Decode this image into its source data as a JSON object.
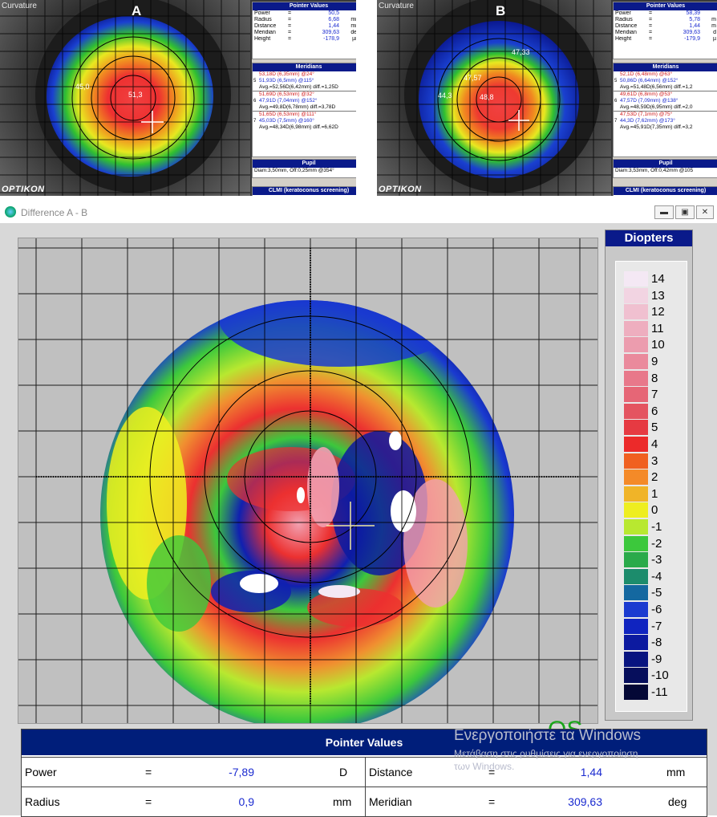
{
  "top_panels": [
    {
      "title": "Curvature",
      "letter": "A",
      "brand": "OPTIKON",
      "annotations": [
        "45,0",
        "51,3"
      ],
      "pointer_values": {
        "header": "Pointer Values",
        "rows": [
          {
            "label": "Power",
            "eq": "=",
            "value": "50,5",
            "unit": "D"
          },
          {
            "label": "Radius",
            "eq": "=",
            "value": "6,68",
            "unit": "mm"
          },
          {
            "label": "Distance",
            "eq": "=",
            "value": "1,44",
            "unit": "mm"
          },
          {
            "label": "Meridian",
            "eq": "=",
            "value": "309,63",
            "unit": "deg"
          },
          {
            "label": "Height",
            "eq": "=",
            "value": "-178,9",
            "unit": "µm"
          }
        ]
      },
      "meridians": {
        "header": "Meridians",
        "groups": [
          {
            "num": "5",
            "lines": [
              "53,18D (6,35mm) @24°",
              "51,93D (6,5mm) @115°",
              "Avg.=52,56D(6,42mm) diff.=1,25D"
            ]
          },
          {
            "num": "6",
            "lines": [
              "51,69D (6,53mm) @32°",
              "47,91D (7,04mm) @152°",
              "Avg.=49,8D(6,78mm) diff.=3,78D"
            ]
          },
          {
            "num": "7",
            "lines": [
              "51,65D (6,53mm) @111°",
              "45,03D (7,5mm) @160°",
              "Avg.=48,34D(6,98mm) diff.=6,62D"
            ]
          }
        ]
      },
      "pupil": {
        "header": "Pupil",
        "text": "Diam:3,50mm, Off:0,25mm @354°"
      },
      "clmi": "CLMI (keratoconus screening)"
    },
    {
      "title": "Curvature",
      "letter": "B",
      "brand": "OPTIKON",
      "annotations": [
        "47,33",
        "44,3",
        "47,57",
        "48,8"
      ],
      "pointer_values": {
        "header": "Pointer Values",
        "rows": [
          {
            "label": "Power",
            "eq": "=",
            "value": "58,39",
            "unit": ""
          },
          {
            "label": "Radius",
            "eq": "=",
            "value": "5,78",
            "unit": "m"
          },
          {
            "label": "Distance",
            "eq": "=",
            "value": "1,44",
            "unit": "m"
          },
          {
            "label": "Meridian",
            "eq": "=",
            "value": "309,63",
            "unit": "d"
          },
          {
            "label": "Height",
            "eq": "=",
            "value": "-179,9",
            "unit": "µ"
          }
        ]
      },
      "meridians": {
        "header": "Meridians",
        "groups": [
          {
            "num": "5",
            "lines": [
              "52,1D (6,48mm) @63°",
              "50,86D (6,64mm) @152°",
              "Avg.=51,48D(6,56mm) diff.=1,2"
            ]
          },
          {
            "num": "6",
            "lines": [
              "49,61D (6,8mm) @53°",
              "47,57D (7,09mm) @138°",
              "Avg.=48,59D(6,95mm) diff.=2,0"
            ]
          },
          {
            "num": "7",
            "lines": [
              "47,53D (7,1mm) @75°",
              "44,3D (7,62mm) @173°",
              "Avg.=45,91D(7,35mm) diff.=3,2"
            ]
          }
        ]
      },
      "pupil": {
        "header": "Pupil",
        "text": "Diam:3,53mm, Off:0,42mm @105"
      },
      "clmi": "CLMI (keratoconus screening)"
    }
  ],
  "window": {
    "title": "Difference A - B",
    "controls": [
      "minimize",
      "maximize",
      "close"
    ],
    "eye_label": "OS",
    "legend": {
      "title": "Diopters",
      "scale": [
        {
          "value": "14",
          "color": "#f4e8f4"
        },
        {
          "value": "13",
          "color": "#f2d4e2"
        },
        {
          "value": "12",
          "color": "#f0c0d0"
        },
        {
          "value": "11",
          "color": "#eeaebf"
        },
        {
          "value": "10",
          "color": "#ec9cae"
        },
        {
          "value": "9",
          "color": "#ea8a9c"
        },
        {
          "value": "8",
          "color": "#e8788a"
        },
        {
          "value": "7",
          "color": "#e66676"
        },
        {
          "value": "6",
          "color": "#e45460"
        },
        {
          "value": "5",
          "color": "#e63a42"
        },
        {
          "value": "4",
          "color": "#ec2a2a"
        },
        {
          "value": "3",
          "color": "#f06020"
        },
        {
          "value": "2",
          "color": "#f48a28"
        },
        {
          "value": "1",
          "color": "#f0b428"
        },
        {
          "value": "0",
          "color": "#eeee20"
        },
        {
          "value": "-1",
          "color": "#b8e830"
        },
        {
          "value": "-2",
          "color": "#3cc83c"
        },
        {
          "value": "-3",
          "color": "#2aaa4a"
        },
        {
          "value": "-4",
          "color": "#1c8c6c"
        },
        {
          "value": "-5",
          "color": "#1468a0"
        },
        {
          "value": "-6",
          "color": "#1a3ad0"
        },
        {
          "value": "-7",
          "color": "#1024c0"
        },
        {
          "value": "-8",
          "color": "#0c1aa0"
        },
        {
          "value": "-9",
          "color": "#081480"
        },
        {
          "value": "-10",
          "color": "#060e5c"
        },
        {
          "value": "-11",
          "color": "#040836"
        }
      ]
    },
    "pointer_values": {
      "header": "Pointer Values",
      "rows": [
        {
          "left_label": "Power",
          "left_eq": "=",
          "left_value": "-7,89",
          "left_unit": "D",
          "right_label": "Distance",
          "right_eq": "=",
          "right_value": "1,44",
          "right_unit": "mm"
        },
        {
          "left_label": "Radius",
          "left_eq": "=",
          "left_value": "0,9",
          "left_unit": "mm",
          "right_label": "Meridian",
          "right_eq": "=",
          "right_value": "309,63",
          "right_unit": "deg"
        }
      ]
    }
  },
  "watermark": {
    "line1": "Ενεργοποιήστε τα Windows",
    "line2": "Μετάβαση στις ρυθμίσεις για ενεργοποίηση",
    "line3": "των Windows."
  }
}
